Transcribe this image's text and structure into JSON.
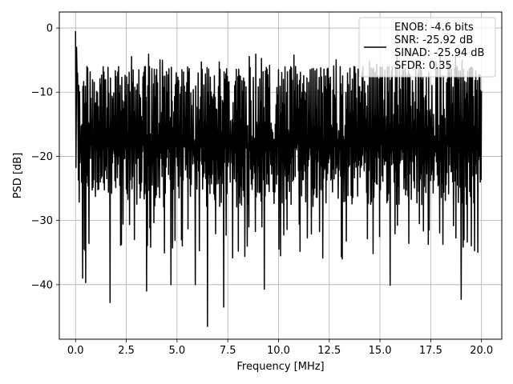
{
  "chart_data": {
    "type": "line",
    "title": "",
    "xlabel": "Frequency [MHz]",
    "ylabel": "PSD [dB]",
    "xlim": [
      -0.8,
      21.0
    ],
    "ylim": [
      -48.5,
      2.5
    ],
    "grid": true,
    "legend_position": "top-right",
    "x_ticks": [
      0.0,
      2.5,
      5.0,
      7.5,
      10.0,
      12.5,
      15.0,
      17.5,
      20.0
    ],
    "x_tick_labels": [
      "0.0",
      "2.5",
      "5.0",
      "7.5",
      "10.0",
      "12.5",
      "15.0",
      "17.5",
      "20.0"
    ],
    "y_ticks": [
      0,
      -10,
      -20,
      -30,
      -40
    ],
    "y_tick_labels": [
      "0",
      "−10",
      "−20",
      "−30",
      "−40"
    ],
    "legend_entries": [
      "ENOB: -4.6 bits",
      "SNR: -25.92 dB",
      "SINAD: -25.94 dB",
      "SFDR: 0.35"
    ],
    "series": [
      {
        "color": "#000000",
        "x_range": [
          0.0,
          20.0
        ],
        "approx_points": 1000,
        "noise_band_upper_db": -6,
        "noise_band_lower_db": -28,
        "peaks": [
          {
            "x": 0.0,
            "y": -0.5
          },
          {
            "x": 0.05,
            "y": -3
          },
          {
            "x": 0.1,
            "y": -7
          }
        ],
        "dips": [
          {
            "x": 0.35,
            "y": -39
          },
          {
            "x": 0.5,
            "y": -39.7
          },
          {
            "x": 1.7,
            "y": -42.8
          },
          {
            "x": 3.5,
            "y": -41
          },
          {
            "x": 4.7,
            "y": -40
          },
          {
            "x": 5.9,
            "y": -40
          },
          {
            "x": 6.5,
            "y": -46.5
          },
          {
            "x": 7.3,
            "y": -43.5
          },
          {
            "x": 9.3,
            "y": -40.7
          },
          {
            "x": 15.5,
            "y": -40.1
          },
          {
            "x": 19.0,
            "y": -42.3
          }
        ]
      }
    ]
  }
}
